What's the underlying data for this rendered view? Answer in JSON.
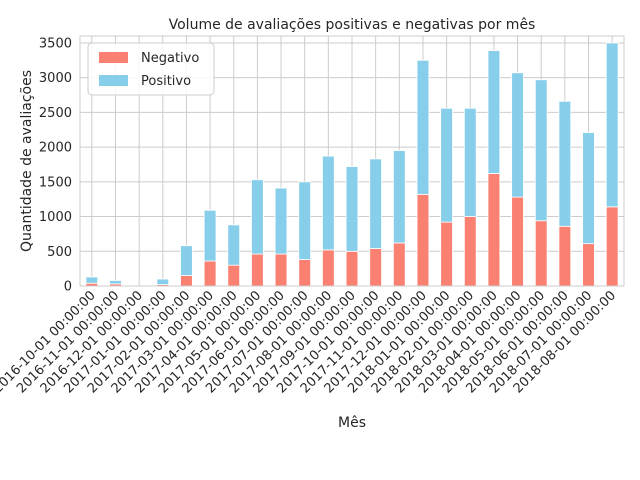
{
  "chart_data": {
    "type": "bar",
    "stacked": true,
    "title": "Volume de avaliações positivas e negativas por mês",
    "xlabel": "Mês",
    "ylabel": "Quantidade de avaliações",
    "ylim": [
      0,
      3600
    ],
    "yticks": [
      0,
      500,
      1000,
      1500,
      2000,
      2500,
      3000,
      3500
    ],
    "grid": true,
    "legend_position": "top-left",
    "categories": [
      "2016-10-01 00:00:00",
      "2016-11-01 00:00:00",
      "2016-12-01 00:00:00",
      "2017-01-01 00:00:00",
      "2017-02-01 00:00:00",
      "2017-03-01 00:00:00",
      "2017-04-01 00:00:00",
      "2017-05-01 00:00:00",
      "2017-06-01 00:00:00",
      "2017-07-01 00:00:00",
      "2017-08-01 00:00:00",
      "2017-09-01 00:00:00",
      "2017-10-01 00:00:00",
      "2017-11-01 00:00:00",
      "2017-12-01 00:00:00",
      "2018-01-01 00:00:00",
      "2018-02-01 00:00:00",
      "2018-03-01 00:00:00",
      "2018-04-01 00:00:00",
      "2018-05-01 00:00:00",
      "2018-06-01 00:00:00",
      "2018-07-01 00:00:00",
      "2018-08-01 00:00:00"
    ],
    "series": [
      {
        "name": "Negativo",
        "color": "#fa8072",
        "values": [
          40,
          30,
          0,
          20,
          150,
          360,
          300,
          460,
          460,
          380,
          520,
          500,
          540,
          620,
          1320,
          920,
          1000,
          1620,
          1280,
          940,
          860,
          610,
          1140
        ]
      },
      {
        "name": "Positivo",
        "color": "#87ceeb",
        "values": [
          90,
          50,
          5,
          80,
          430,
          730,
          580,
          1070,
          950,
          1120,
          1350,
          1220,
          1290,
          1330,
          1930,
          1640,
          1560,
          1770,
          1790,
          2030,
          1800,
          1600,
          2360
        ]
      }
    ]
  }
}
